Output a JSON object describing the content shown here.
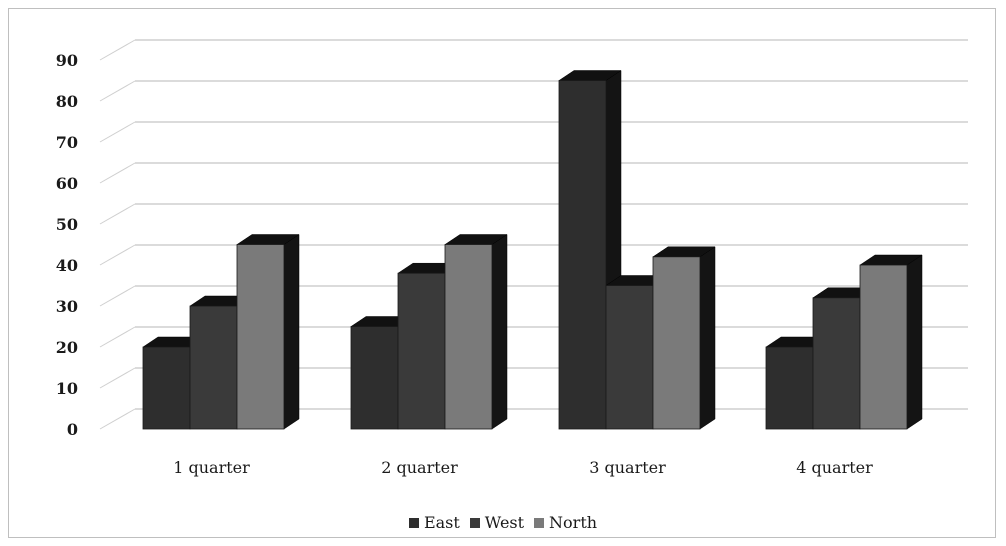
{
  "chart_data": {
    "type": "bar",
    "style": "3d-clustered-column",
    "categories": [
      "1 quarter",
      "2 quarter",
      "3 quarter",
      "4 quarter"
    ],
    "series": [
      {
        "name": "East",
        "values": [
          20,
          25,
          85,
          20
        ],
        "color": "#2e2e2e"
      },
      {
        "name": "West",
        "values": [
          30,
          38,
          35,
          32
        ],
        "color": "#3a3a3a"
      },
      {
        "name": "North",
        "values": [
          45,
          45,
          42,
          40
        ],
        "color": "#7a7a7a"
      }
    ],
    "yticks": [
      "0",
      "10",
      "20",
      "30",
      "40",
      "50",
      "60",
      "70",
      "80",
      "90"
    ],
    "ylim": [
      0,
      90
    ],
    "grid": true,
    "legend_position": "bottom",
    "title": "",
    "xlabel": "",
    "ylabel": ""
  }
}
